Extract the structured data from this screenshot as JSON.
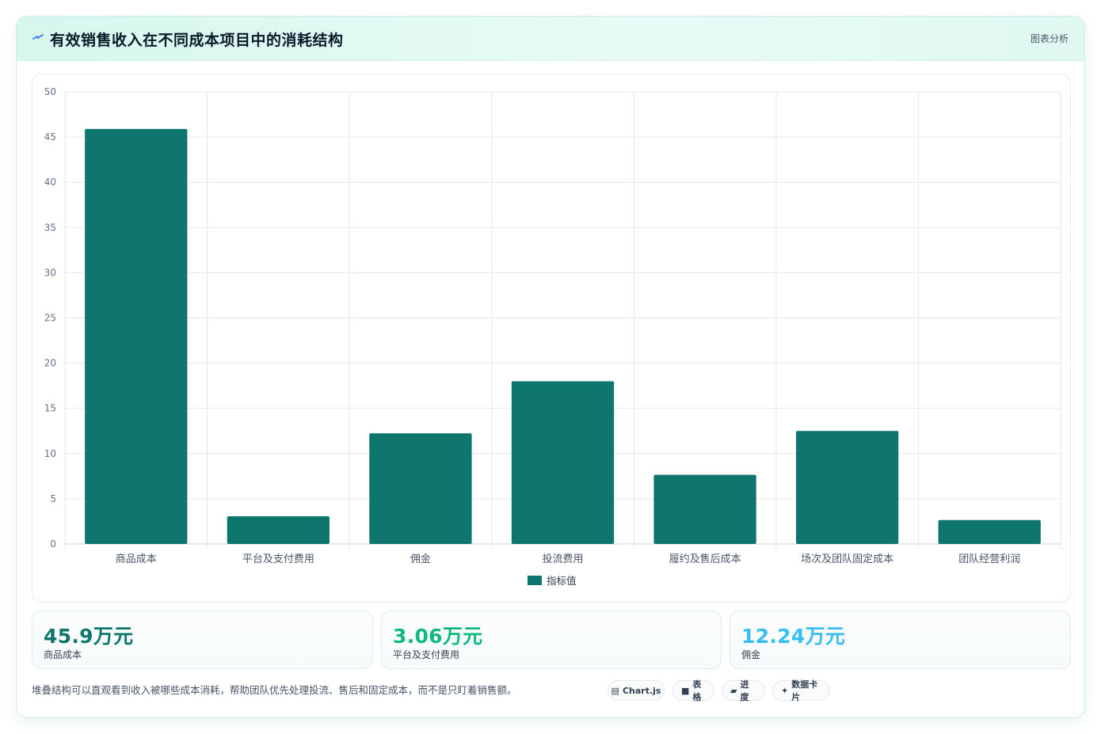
{
  "header": {
    "title": "有效销售收入在不同成本项目中的消耗结构",
    "label": "图表分析",
    "icon": "lightning-icon"
  },
  "chart_data": {
    "type": "bar",
    "categories": [
      "商品成本",
      "平台及支付费用",
      "佣金",
      "投流费用",
      "履约及售后成本",
      "场次及团队固定成本",
      "团队经营利润"
    ],
    "series": [
      {
        "name": "指标值",
        "values": [
          45.9,
          3.06,
          12.24,
          18.0,
          7.65,
          12.5,
          2.65
        ]
      }
    ],
    "ylim": [
      0,
      50
    ],
    "yticks": [
      "0",
      "5",
      "10",
      "15",
      "20",
      "25",
      "30",
      "35",
      "40",
      "45",
      "50"
    ],
    "grid": true,
    "legend_position": "bottom",
    "colors": {
      "bar": "#0f766e",
      "grid": "#e5e7eb",
      "axis_text": "#64748b"
    }
  },
  "stats": [
    {
      "value": "45.9万元",
      "label": "商品成本",
      "color": "#0f766e"
    },
    {
      "value": "3.06万元",
      "label": "平台及支付费用",
      "color": "#10b981"
    },
    {
      "value": "12.24万元",
      "label": "佣金",
      "color": "#38bdf8"
    }
  ],
  "note": "堆叠结构可以直观看到收入被哪些成本消耗，帮助团队优先处理投流、售后和固定成本，而不是只盯着销售额。",
  "chips": [
    {
      "icon": "chart-icon",
      "glyph": "▤",
      "label": "Chart.js"
    },
    {
      "icon": "table-icon",
      "glyph": "■",
      "label": "表格"
    },
    {
      "icon": "progress-icon",
      "glyph": "▰",
      "label": "进度"
    },
    {
      "icon": "sparkle-icon",
      "glyph": "✦",
      "label": "数据卡片"
    }
  ]
}
